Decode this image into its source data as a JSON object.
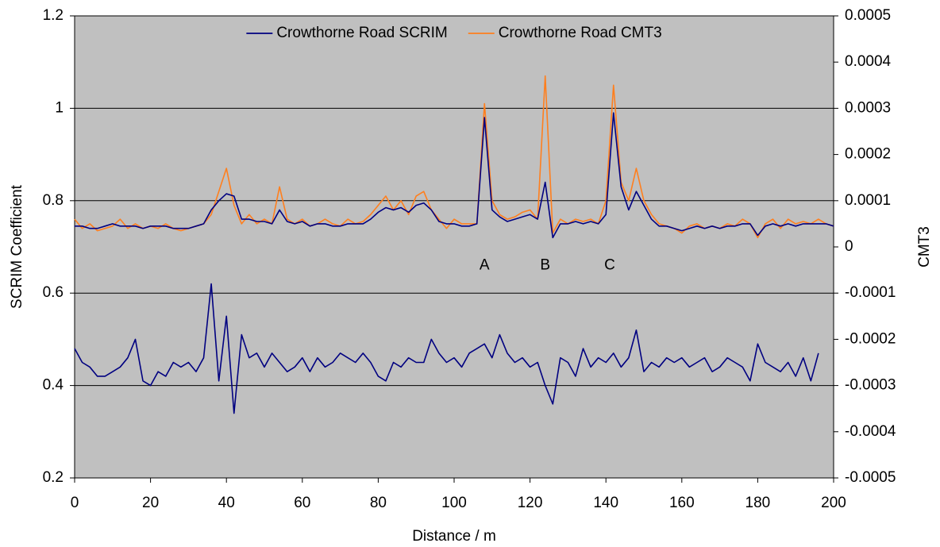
{
  "chart_data": {
    "type": "line",
    "xlabel": "Distance / m",
    "ylabel": "SCRIM Coefficient",
    "y2label": "CMT3",
    "xlim": [
      0,
      200
    ],
    "xticks": [
      0,
      20,
      40,
      60,
      80,
      100,
      120,
      140,
      160,
      180,
      200
    ],
    "ylim": [
      0.2,
      1.2
    ],
    "yticks": [
      0.2,
      0.4,
      0.6,
      0.8,
      1,
      1.2
    ],
    "y2lim": [
      -0.0005,
      0.0005
    ],
    "y2ticks": [
      -0.0005,
      -0.0004,
      -0.0003,
      -0.0002,
      -0.0001,
      0,
      0.0001,
      0.0002,
      0.0003,
      0.0004,
      0.0005
    ],
    "grid": true,
    "background": "#c0c0c0",
    "legend": "upper center",
    "annotations": [
      {
        "text": "A",
        "x": 108,
        "y": 0.66
      },
      {
        "text": "B",
        "x": 124,
        "y": 0.66
      },
      {
        "text": "C",
        "x": 141,
        "y": 0.66
      }
    ],
    "series": [
      {
        "name": "Crowthorne Road CMT3",
        "color": "#ff7f1e",
        "axis": "y2",
        "x": [
          0,
          2,
          4,
          6,
          8,
          10,
          12,
          14,
          16,
          18,
          20,
          22,
          24,
          26,
          28,
          30,
          32,
          34,
          36,
          38,
          40,
          42,
          44,
          46,
          48,
          50,
          52,
          54,
          56,
          58,
          60,
          62,
          64,
          66,
          68,
          70,
          72,
          74,
          76,
          78,
          80,
          82,
          84,
          86,
          88,
          90,
          92,
          94,
          96,
          98,
          100,
          102,
          104,
          106,
          108,
          110,
          112,
          114,
          116,
          118,
          120,
          122,
          124,
          126,
          128,
          130,
          132,
          134,
          136,
          138,
          140,
          142,
          144,
          146,
          148,
          150,
          152,
          154,
          156,
          158,
          160,
          162,
          164,
          166,
          168,
          170,
          172,
          174,
          176,
          178,
          180,
          182,
          184,
          186,
          188,
          190,
          192,
          194,
          196,
          198,
          200
        ],
        "values": [
          6e-05,
          4e-05,
          5e-05,
          3.5e-05,
          4e-05,
          4.5e-05,
          6e-05,
          4e-05,
          5e-05,
          4e-05,
          4.5e-05,
          4e-05,
          5e-05,
          4e-05,
          3.5e-05,
          4e-05,
          4.5e-05,
          5e-05,
          7e-05,
          0.00012,
          0.00017,
          9e-05,
          5e-05,
          7e-05,
          5e-05,
          6e-05,
          5e-05,
          0.00013,
          6e-05,
          5e-05,
          6e-05,
          4.5e-05,
          5e-05,
          6e-05,
          5e-05,
          4.5e-05,
          6e-05,
          5e-05,
          5.5e-05,
          7e-05,
          9e-05,
          0.00011,
          8e-05,
          0.0001,
          7e-05,
          0.00011,
          0.00012,
          8e-05,
          6e-05,
          4e-05,
          6e-05,
          5e-05,
          5e-05,
          5e-05,
          0.00031,
          0.0001,
          7e-05,
          6e-05,
          6.5e-05,
          7.5e-05,
          8e-05,
          6e-05,
          0.00037,
          3e-05,
          6e-05,
          5e-05,
          6e-05,
          5.5e-05,
          6e-05,
          5e-05,
          0.0001,
          0.00035,
          0.00014,
          0.0001,
          0.00017,
          0.0001,
          7e-05,
          5e-05,
          4.5e-05,
          4e-05,
          3e-05,
          4.5e-05,
          5e-05,
          4e-05,
          4.5e-05,
          4e-05,
          5e-05,
          4.5e-05,
          6e-05,
          5e-05,
          2e-05,
          5e-05,
          6e-05,
          4e-05,
          6e-05,
          5e-05,
          5.5e-05,
          5e-05,
          6e-05,
          5e-05,
          4.5e-05
        ]
      },
      {
        "color": "#000080",
        "axis": "y2",
        "x": [
          0,
          2,
          4,
          6,
          8,
          10,
          12,
          14,
          16,
          18,
          20,
          22,
          24,
          26,
          28,
          30,
          32,
          34,
          36,
          38,
          40,
          42,
          44,
          46,
          48,
          50,
          52,
          54,
          56,
          58,
          60,
          62,
          64,
          66,
          68,
          70,
          72,
          74,
          76,
          78,
          80,
          82,
          84,
          86,
          88,
          90,
          92,
          94,
          96,
          98,
          100,
          102,
          104,
          106,
          108,
          110,
          112,
          114,
          116,
          118,
          120,
          122,
          124,
          126,
          128,
          130,
          132,
          134,
          136,
          138,
          140,
          142,
          144,
          146,
          148,
          150,
          152,
          154,
          156,
          158,
          160,
          162,
          164,
          166,
          168,
          170,
          172,
          174,
          176,
          178,
          180,
          182,
          184,
          186,
          188,
          190,
          192,
          194,
          196,
          198,
          200
        ],
        "values": [
          4.5e-05,
          4.5e-05,
          4e-05,
          4e-05,
          4.5e-05,
          5e-05,
          4.5e-05,
          4.5e-05,
          4.5e-05,
          4e-05,
          4.5e-05,
          4.5e-05,
          4.5e-05,
          4e-05,
          4e-05,
          4e-05,
          4.5e-05,
          5e-05,
          8e-05,
          0.0001,
          0.000115,
          0.00011,
          6e-05,
          6e-05,
          5.5e-05,
          5.5e-05,
          5e-05,
          8e-05,
          5.5e-05,
          5e-05,
          5.5e-05,
          4.5e-05,
          5e-05,
          5e-05,
          4.5e-05,
          4.5e-05,
          5e-05,
          5e-05,
          5e-05,
          6e-05,
          7.5e-05,
          8.5e-05,
          8e-05,
          8.5e-05,
          7.5e-05,
          9e-05,
          9.5e-05,
          8e-05,
          5.5e-05,
          5e-05,
          5e-05,
          4.5e-05,
          4.5e-05,
          5e-05,
          0.00028,
          8e-05,
          6.5e-05,
          5.5e-05,
          6e-05,
          6.5e-05,
          7e-05,
          6e-05,
          0.00014,
          2e-05,
          5e-05,
          5e-05,
          5.5e-05,
          5e-05,
          5.5e-05,
          5e-05,
          7e-05,
          0.00029,
          0.00013,
          8e-05,
          0.00012,
          9e-05,
          6e-05,
          4.5e-05,
          4.5e-05,
          4e-05,
          3.5e-05,
          4e-05,
          4.5e-05,
          4e-05,
          4.5e-05,
          4e-05,
          4.5e-05,
          4.5e-05,
          5e-05,
          5e-05,
          2.5e-05,
          4.5e-05,
          5e-05,
          4.5e-05,
          5e-05,
          4.5e-05,
          5e-05,
          5e-05,
          5e-05,
          5e-05,
          4.5e-05
        ]
      },
      {
        "name": "Crowthorne Road SCRIM",
        "color": "#000080",
        "axis": "y",
        "x": [
          0,
          2,
          4,
          6,
          8,
          10,
          12,
          14,
          16,
          18,
          20,
          22,
          24,
          26,
          28,
          30,
          32,
          34,
          36,
          38,
          40,
          42,
          44,
          46,
          48,
          50,
          52,
          54,
          56,
          58,
          60,
          62,
          64,
          66,
          68,
          70,
          72,
          74,
          76,
          78,
          80,
          82,
          84,
          86,
          88,
          90,
          92,
          94,
          96,
          98,
          100,
          102,
          104,
          106,
          108,
          110,
          112,
          114,
          116,
          118,
          120,
          122,
          124,
          126,
          128,
          130,
          132,
          134,
          136,
          138,
          140,
          142,
          144,
          146,
          148,
          150,
          152,
          154,
          156,
          158,
          160,
          162,
          164,
          166,
          168,
          170,
          172,
          174,
          176,
          178,
          180,
          182,
          184,
          186,
          188,
          190,
          192,
          194,
          196
        ],
        "values": [
          0.48,
          0.45,
          0.44,
          0.42,
          0.42,
          0.43,
          0.44,
          0.46,
          0.5,
          0.41,
          0.4,
          0.43,
          0.42,
          0.45,
          0.44,
          0.45,
          0.43,
          0.46,
          0.62,
          0.41,
          0.55,
          0.34,
          0.51,
          0.46,
          0.47,
          0.44,
          0.47,
          0.45,
          0.43,
          0.44,
          0.46,
          0.43,
          0.46,
          0.44,
          0.45,
          0.47,
          0.46,
          0.45,
          0.47,
          0.45,
          0.42,
          0.41,
          0.45,
          0.44,
          0.46,
          0.45,
          0.45,
          0.5,
          0.47,
          0.45,
          0.46,
          0.44,
          0.47,
          0.48,
          0.49,
          0.46,
          0.51,
          0.47,
          0.45,
          0.46,
          0.44,
          0.45,
          0.4,
          0.36,
          0.46,
          0.45,
          0.42,
          0.48,
          0.44,
          0.46,
          0.45,
          0.47,
          0.44,
          0.46,
          0.52,
          0.43,
          0.45,
          0.44,
          0.46,
          0.45,
          0.46,
          0.44,
          0.45,
          0.46,
          0.43,
          0.44,
          0.46,
          0.45,
          0.44,
          0.41,
          0.49,
          0.45,
          0.44,
          0.43,
          0.45,
          0.42,
          0.46,
          0.41,
          0.47
        ]
      }
    ]
  }
}
